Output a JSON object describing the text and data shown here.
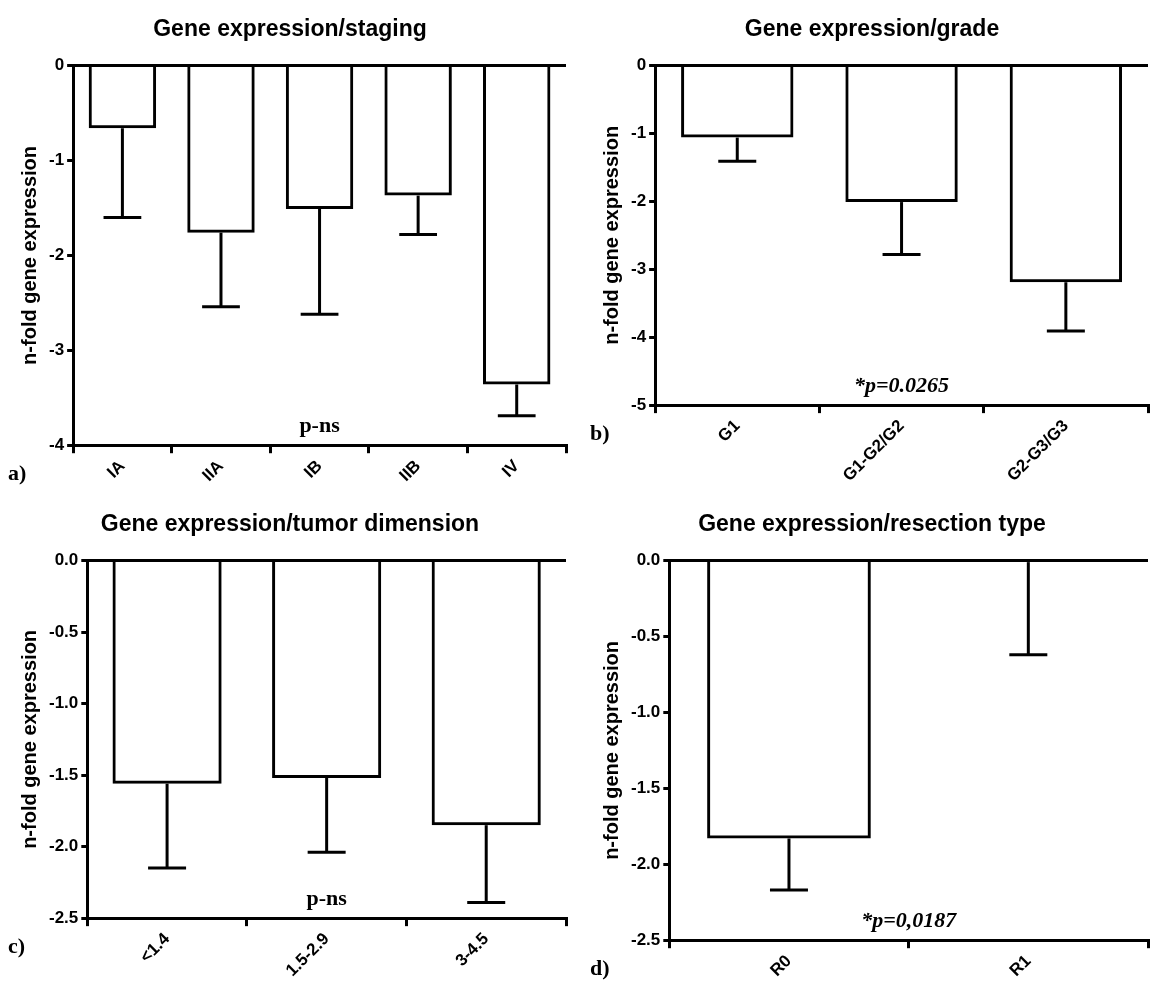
{
  "chart_data": [
    {
      "type": "bar",
      "title": "Gene expression/staging",
      "ylabel": "n-fold gene expression",
      "categories": [
        "IA",
        "IIA",
        "IB",
        "IIB",
        "IV"
      ],
      "values": [
        -0.66,
        -1.76,
        -1.51,
        -1.37,
        -3.36
      ],
      "errors": [
        [
          -1.6,
          -0.66
        ],
        [
          -2.54,
          -1.76
        ],
        [
          -2.62,
          -1.51
        ],
        [
          -1.78,
          -1.37
        ],
        [
          -3.69,
          -3.36
        ]
      ],
      "color": "#000000",
      "ylim": [
        -4,
        0
      ],
      "yticks": [
        0,
        -1,
        -2,
        -3,
        -4
      ],
      "annotations": [
        "a)",
        "p-ns"
      ]
    },
    {
      "type": "bar",
      "title": "Gene expression/grade",
      "ylabel": "n-fold gene expression",
      "categories": [
        "G1",
        "G1-G2/G2",
        "G2-G3/G3"
      ],
      "values": [
        -1.06,
        -2.01,
        -3.19
      ],
      "errors": [
        [
          -1.41,
          -1.06
        ],
        [
          -2.78,
          -2.01
        ],
        [
          -3.91,
          -3.19
        ]
      ],
      "color": "#000000",
      "ylim": [
        -5,
        0
      ],
      "yticks": [
        0,
        -1,
        -2,
        -3,
        -4,
        -5
      ],
      "annotations": [
        "b)",
        "*p=0.0265"
      ]
    },
    {
      "type": "bar",
      "title": "Gene expression/tumor dimension",
      "ylabel": "n-fold gene expression",
      "categories": [
        "<1.4",
        "1.5-2.9",
        "3-4.5"
      ],
      "values": [
        -1.56,
        -1.52,
        -1.85
      ],
      "errors": [
        [
          -2.15,
          -1.56
        ],
        [
          -2.04,
          -1.52
        ],
        [
          -2.39,
          -1.85
        ]
      ],
      "color": "#000000",
      "ylim": [
        -2.5,
        0
      ],
      "yticks": [
        {
          "value": 0,
          "label": "0.0"
        },
        {
          "value": -0.5,
          "label": "-0.5"
        },
        {
          "value": -1,
          "label": "-1.0"
        },
        {
          "value": -1.5,
          "label": "-1.5"
        },
        {
          "value": -2,
          "label": "-2.0"
        },
        {
          "value": -2.5,
          "label": "-2.5"
        }
      ],
      "annotations": [
        "c)",
        "p-ns"
      ]
    },
    {
      "type": "bar",
      "title": "Gene expression/resection type",
      "ylabel": "n-fold gene expression",
      "categories": [
        "R0",
        "R1"
      ],
      "values": [
        -1.83,
        -0.01
      ],
      "errors": [
        [
          -2.17,
          -1.83
        ],
        [
          -0.62,
          -0.01
        ]
      ],
      "color": "#000000",
      "ylim": [
        -2.5,
        0
      ],
      "yticks": [
        {
          "value": 0,
          "label": "0.0"
        },
        {
          "value": -0.5,
          "label": "-0.5"
        },
        {
          "value": -1,
          "label": "-1.0"
        },
        {
          "value": -1.5,
          "label": "-1.5"
        },
        {
          "value": -2,
          "label": "-2.0"
        },
        {
          "value": -2.5,
          "label": "-2.5"
        }
      ],
      "annotations": [
        "d)",
        "*p=0,0187"
      ]
    }
  ]
}
